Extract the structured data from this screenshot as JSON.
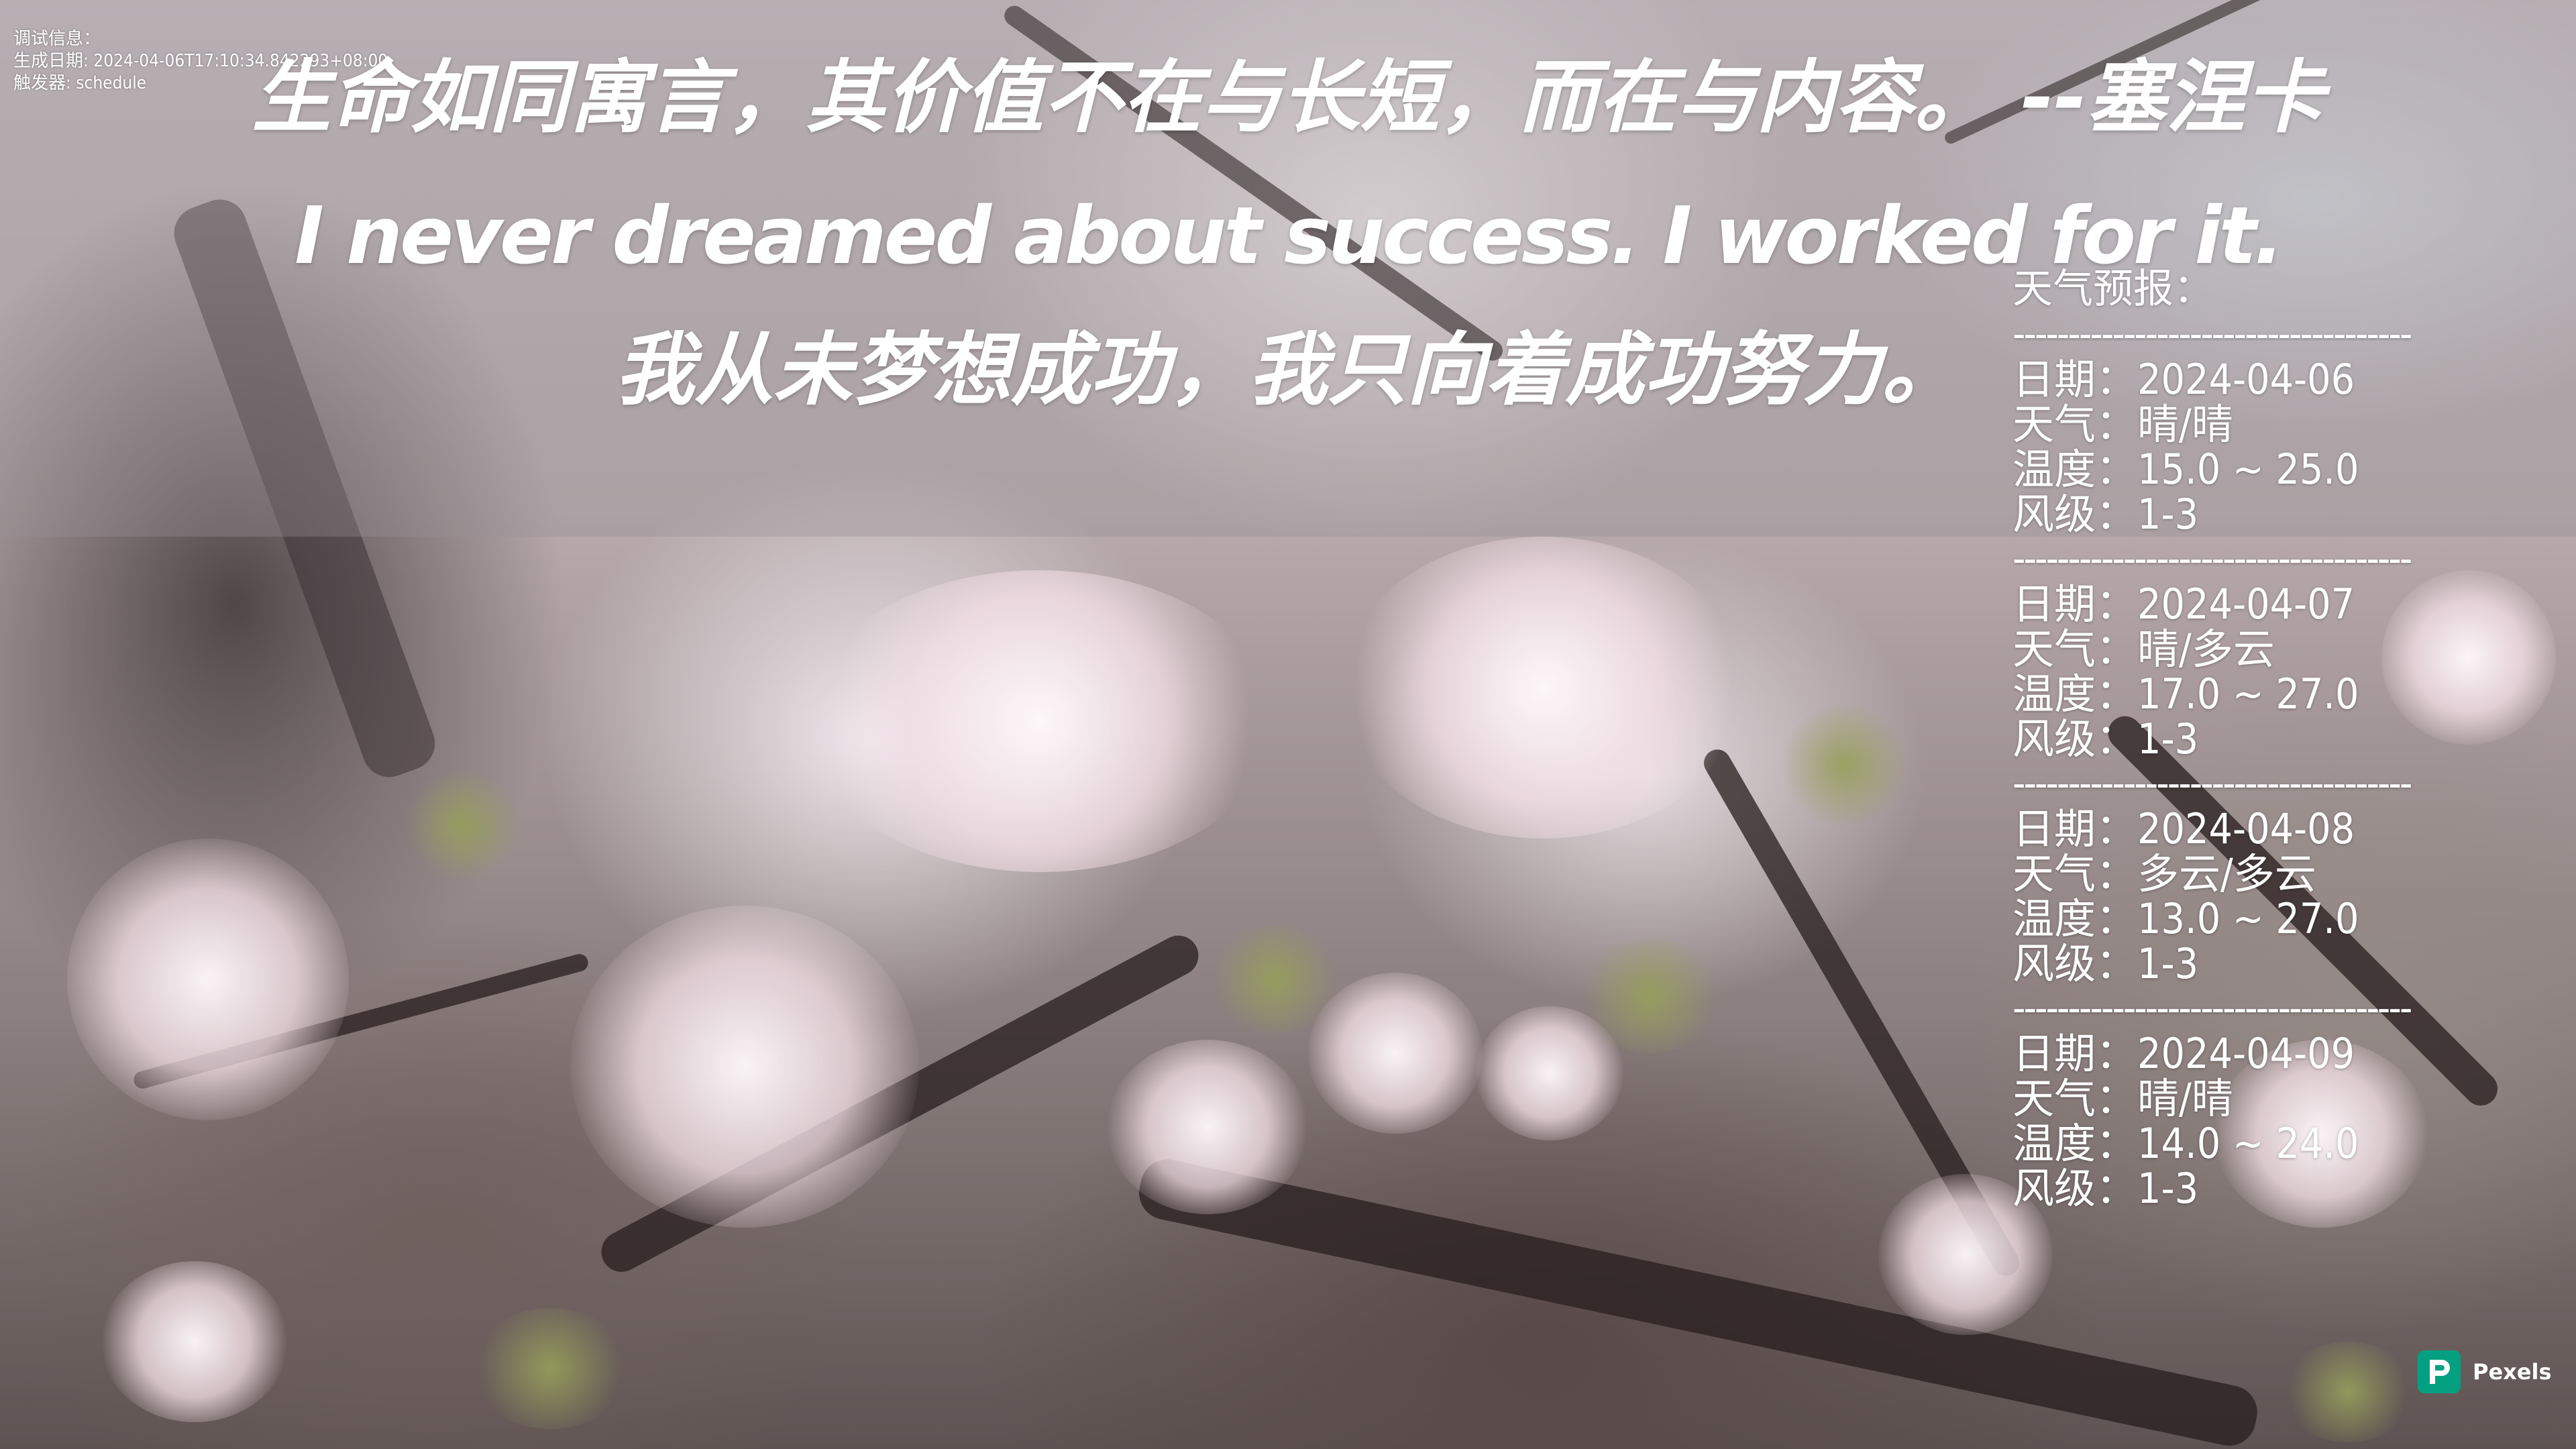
{
  "debug": {
    "line1": "调试信息：",
    "line2": "生成日期: 2024-04-06T17:10:34.842293+08:00",
    "line3": "触发器: schedule"
  },
  "quote": {
    "chinese": "生命如同寓言，其价值不在与长短，而在与内容。 --塞涅卡",
    "english": "I never dreamed about success. I worked for it.",
    "english_translation": "我从未梦想成功，我只向着成功努力。"
  },
  "weather": {
    "title": "天气预报：",
    "separator": "------------------------------------",
    "labels": {
      "date": "日期",
      "weather": "天气",
      "temperature": "温度",
      "wind": "风级"
    },
    "colon": "：",
    "days": [
      {
        "date": "2024-04-06",
        "weather": "晴/晴",
        "temperature": "15.0 ~ 25.0",
        "wind": "1-3"
      },
      {
        "date": "2024-04-07",
        "weather": "晴/多云",
        "temperature": "17.0 ~ 27.0",
        "wind": "1-3"
      },
      {
        "date": "2024-04-08",
        "weather": "多云/多云",
        "temperature": "13.0 ~ 27.0",
        "wind": "1-3"
      },
      {
        "date": "2024-04-09",
        "weather": "晴/晴",
        "temperature": "14.0 ~ 24.0",
        "wind": "1-3"
      }
    ]
  },
  "attribution": {
    "label": "Pexels",
    "icon": "pexels-logo-icon",
    "color": "#05a081"
  }
}
